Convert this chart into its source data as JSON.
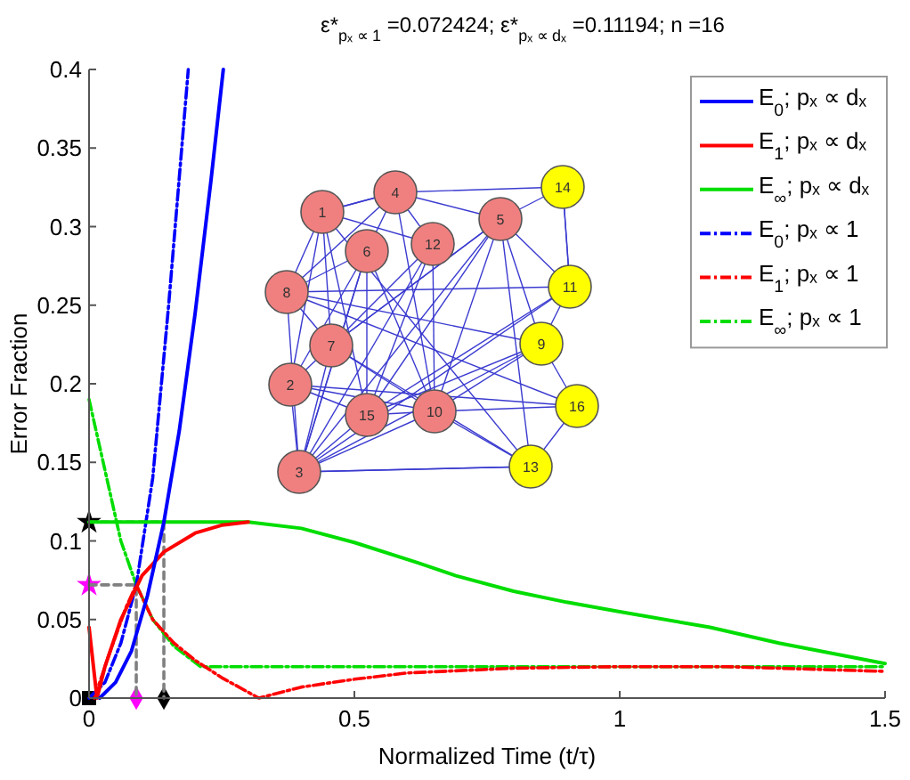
{
  "chart_data": {
    "type": "line",
    "title": "ε*$_{pₓ ∝ 1}$ =0.072424; ε*$_{pₓ ∝ dₓ}$ =0.11194; n =16",
    "xlabel": "Normalized Time (t/τ)",
    "ylabel": "Error Fraction",
    "xlim": [
      0,
      1.5
    ],
    "ylim": [
      0,
      0.4
    ],
    "xticks": [
      0,
      0.5,
      1,
      1.5
    ],
    "yticks": [
      0,
      0.05,
      0.1,
      0.15,
      0.2,
      0.25,
      0.3,
      0.35,
      0.4
    ],
    "legend": "top right",
    "marker": "none",
    "annotations": [
      "1",
      "2",
      "3",
      "4",
      "5",
      "6",
      "7",
      "8",
      "9",
      "10",
      "11",
      "12",
      "13",
      "14",
      "15",
      "16"
    ],
    "series": [
      {
        "name": "E$_{0}$; pₓ ∝ dₓ",
        "color": "#0000ff",
        "line_style": "solid",
        "x": [
          0.02,
          0.05,
          0.08,
          0.11,
          0.141,
          0.17,
          0.2,
          0.23,
          0.253
        ],
        "values": [
          0,
          0.01,
          0.03,
          0.065,
          0.112,
          0.17,
          0.245,
          0.33,
          0.4
        ]
      },
      {
        "name": "E$_{1}$; pₓ ∝ dₓ",
        "color": "#ff0000",
        "line_style": "solid",
        "x": [
          0,
          0.015,
          0.03,
          0.06,
          0.1,
          0.141,
          0.2,
          0.25,
          0.3
        ],
        "values": [
          0.045,
          0,
          0.02,
          0.05,
          0.078,
          0.093,
          0.105,
          0.11,
          0.112
        ]
      },
      {
        "name": "E$_{∞}$; pₓ ∝ dₓ",
        "color": "#00dd00",
        "line_style": "solid",
        "x": [
          0,
          0.3,
          0.4,
          0.5,
          0.62,
          0.69,
          0.8,
          0.9,
          1.0,
          1.17,
          1.3,
          1.5
        ],
        "values": [
          0.112,
          0.112,
          0.108,
          0.099,
          0.086,
          0.078,
          0.068,
          0.061,
          0.055,
          0.045,
          0.035,
          0.022
        ]
      },
      {
        "name": "E$_{0}$; pₓ ∝ 1",
        "color": "#0000ff",
        "line_style": "dashdot",
        "x": [
          0,
          0.03,
          0.06,
          0.089,
          0.12,
          0.15,
          0.187
        ],
        "values": [
          0,
          0.01,
          0.035,
          0.072,
          0.14,
          0.25,
          0.4
        ]
      },
      {
        "name": "E$_{1}$; pₓ ∝ 1",
        "color": "#ff0000",
        "line_style": "dashdot",
        "x": [
          0.01,
          0.04,
          0.07,
          0.089,
          0.12,
          0.16,
          0.2,
          0.25,
          0.32,
          0.4,
          0.5,
          0.6,
          0.8,
          1.0,
          1.2,
          1.5
        ],
        "values": [
          0,
          0.03,
          0.058,
          0.072,
          0.05,
          0.035,
          0.024,
          0.013,
          0,
          0.007,
          0.012,
          0.016,
          0.019,
          0.02,
          0.02,
          0.017
        ]
      },
      {
        "name": "E$_{∞}$; pₓ ∝ 1",
        "color": "#00dd00",
        "line_style": "dashdot",
        "x": [
          0,
          0.02,
          0.04,
          0.06,
          0.089,
          0.12,
          0.16,
          0.21,
          1.5
        ],
        "values": [
          0.19,
          0.16,
          0.13,
          0.1,
          0.072,
          0.05,
          0.033,
          0.02,
          0.02
        ]
      },
      {
        "color": "#808080",
        "line_style": "dashed",
        "x": [
          0,
          0.089,
          0.089
        ],
        "values": [
          0.072,
          0.072,
          0
        ]
      },
      {
        "color": "#808080",
        "line_style": "dashed",
        "x": [
          0,
          0.141,
          0.141
        ],
        "values": [
          0.112,
          0.112,
          0
        ]
      },
      {
        "type": "scatter",
        "color": "#ff00ff",
        "marker": "star",
        "x": [
          0
        ],
        "values": [
          0.072
        ]
      },
      {
        "type": "scatter",
        "color": "#000000",
        "marker": "star",
        "x": [
          0
        ],
        "values": [
          0.112
        ]
      },
      {
        "type": "scatter",
        "color": "#ff00ff",
        "marker": "diamond",
        "x": [
          0.089
        ],
        "values": [
          0
        ]
      },
      {
        "type": "scatter",
        "color": "#000000",
        "marker": "diamond",
        "x": [
          0.141
        ],
        "values": [
          0
        ]
      },
      {
        "type": "scatter",
        "color": "#000000",
        "marker": "square",
        "x": [
          0
        ],
        "values": [
          0
        ]
      }
    ]
  }
}
